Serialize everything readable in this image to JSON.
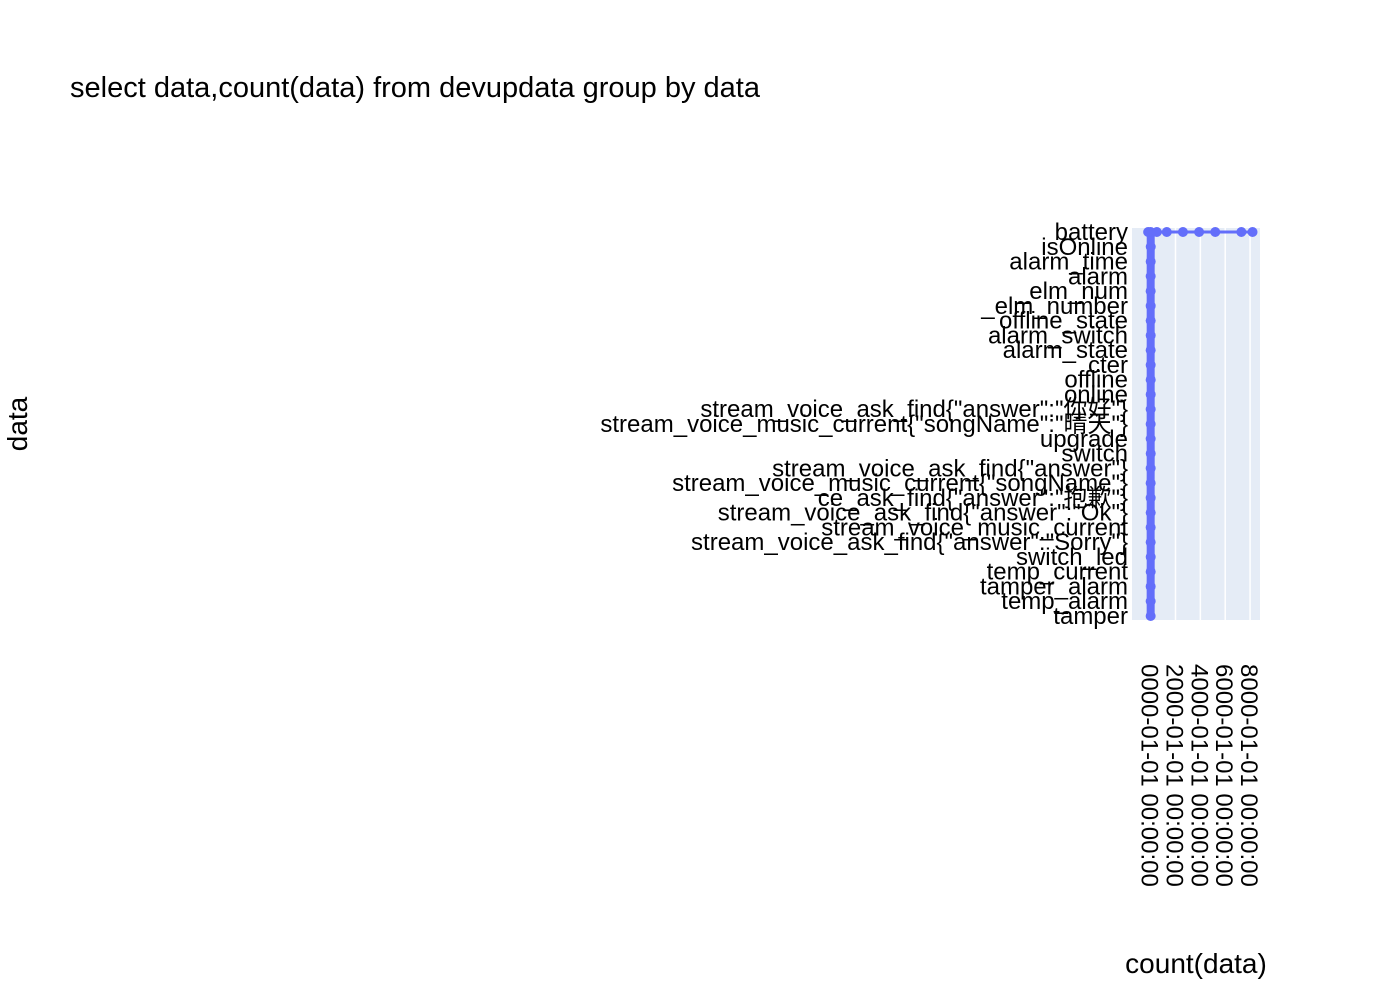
{
  "chart_data": {
    "type": "line",
    "title": "select data,count(data) from devupdata group by data",
    "xlabel": "count(data)",
    "ylabel": "data",
    "x_ticks": [
      "0000-01-01 00:00:00",
      "2000-01-01 00:00:00",
      "4000-01-01 00:00:00",
      "6000-01-01 00:00:00",
      "8000-01-01 00:00:00"
    ],
    "x_tick_values": [
      0,
      2000,
      4000,
      6000,
      8000
    ],
    "xlim": [
      -1500,
      8800
    ],
    "grid": true,
    "legend": "none",
    "colors": {
      "series": "#636efa",
      "plot_bg": "#e5ecf6",
      "grid": "#ffffff"
    },
    "categories": [
      "tamper",
      "temp_alarm",
      "tamper_alarm",
      "temp_current",
      "switch_led",
      "stream_voice_ask_find{\"answer\":\"Sorry\"}",
      "stream_voice_music_current",
      "stream_voice_ask_find{\"answer\":\"Ok\"}",
      "ce_ask_find{\"answer\":\"抱歉\"}",
      "stream_voice_music_current{\"songName\"}",
      "stream_voice_ask_find{\"answer\"}",
      "switch",
      "upgrade",
      "stream_voice_music_current{\"songName\":\"晴天\"}",
      "stream_voice_ask_find{\"answer\":\"你好\"}",
      "online",
      "offline",
      "cter",
      "alarm_state",
      "alarm_switch",
      "offline_state",
      "_elm_number",
      "_elm_num",
      "alarm",
      "alarm_time",
      "isOnline",
      "battery"
    ],
    "series": [
      {
        "x": [
          2,
          2,
          1,
          3,
          5,
          2,
          1,
          4,
          2,
          1,
          3,
          6,
          2,
          1,
          2,
          5,
          3,
          2,
          1,
          4,
          2,
          3,
          1,
          2,
          4,
          8,
          3
        ],
        "x_extra": [
          -200,
          500,
          1300,
          2600,
          3900,
          5200,
          7300,
          8200
        ]
      }
    ]
  }
}
